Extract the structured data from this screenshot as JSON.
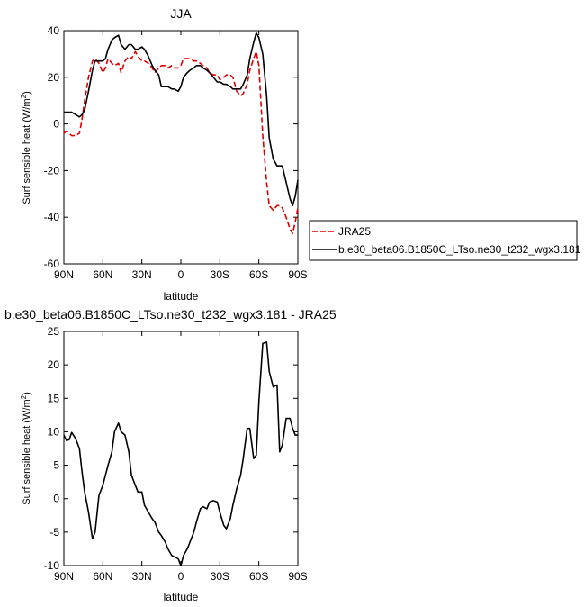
{
  "chart_data": [
    {
      "type": "line",
      "title": "JJA",
      "xlabel": "latitude",
      "ylabel": "Surf sensible heat (W/m",
      "ylabel_sup": "2",
      "ylabel_tail": ")",
      "xlim": [
        90,
        -90
      ],
      "ylim": [
        -60,
        40
      ],
      "xticks": [
        90,
        60,
        30,
        0,
        -30,
        -60,
        -90
      ],
      "xtick_labels": [
        "90N",
        "60N",
        "30N",
        "0",
        "30S",
        "60S",
        "90S"
      ],
      "yticks": [
        -60,
        -40,
        -20,
        0,
        20,
        40
      ],
      "ytick_labels": [
        "-60",
        "-40",
        "-20",
        "0",
        "20",
        "40"
      ],
      "legend_position": "right",
      "series": [
        {
          "name": "JRA25",
          "color": "#dd0000",
          "dash": true,
          "x": [
            90,
            88,
            86,
            84,
            81,
            78,
            76,
            74,
            71,
            68,
            66,
            63,
            60,
            58,
            56,
            53,
            51,
            48,
            46,
            43,
            40,
            38,
            35,
            33,
            30,
            28,
            25,
            22,
            20,
            17,
            15,
            12,
            10,
            7,
            5,
            2,
            0,
            -2,
            -5,
            -7,
            -10,
            -12,
            -15,
            -17,
            -20,
            -22,
            -25,
            -28,
            -30,
            -33,
            -35,
            -38,
            -40,
            -43,
            -46,
            -48,
            -51,
            -53,
            -56,
            -58,
            -60,
            -63,
            -66,
            -68,
            -71,
            -74,
            -76,
            -78,
            -81,
            -84,
            -86,
            -88,
            -90
          ],
          "y": [
            -4,
            -3,
            -4,
            -5,
            -5,
            -4,
            2,
            10,
            20,
            27,
            28,
            26,
            22,
            24,
            28,
            26,
            25,
            26,
            22,
            27,
            29,
            28,
            31,
            29,
            27,
            27,
            26,
            24,
            22,
            24,
            25,
            25,
            24,
            25,
            24,
            24,
            25,
            28,
            28,
            28,
            27,
            27,
            26,
            25,
            24,
            22,
            21,
            21,
            19,
            20,
            21,
            21,
            20,
            14,
            12,
            13,
            17,
            23,
            28,
            31,
            25,
            -5,
            -25,
            -35,
            -37,
            -35,
            -35,
            -36,
            -40,
            -45,
            -47,
            -42,
            -36
          ]
        },
        {
          "name": "b.e30_beta06.B1850C_LTso.ne30_t232_wgx3.181",
          "color": "#000000",
          "dash": false,
          "x": [
            90,
            88,
            86,
            84,
            81,
            78,
            76,
            74,
            71,
            68,
            66,
            63,
            60,
            58,
            56,
            53,
            51,
            48,
            46,
            43,
            40,
            38,
            35,
            33,
            30,
            28,
            25,
            22,
            20,
            17,
            15,
            12,
            10,
            7,
            5,
            2,
            0,
            -2,
            -5,
            -7,
            -10,
            -12,
            -15,
            -17,
            -20,
            -22,
            -25,
            -28,
            -30,
            -33,
            -35,
            -38,
            -40,
            -43,
            -46,
            -48,
            -51,
            -53,
            -56,
            -58,
            -60,
            -63,
            -66,
            -68,
            -71,
            -74,
            -76,
            -78,
            -81,
            -84,
            -86,
            -88,
            -90
          ],
          "y": [
            5,
            5,
            5,
            5,
            4,
            3,
            4,
            6,
            14,
            23,
            27,
            27,
            27,
            28,
            32,
            36,
            37,
            38,
            34,
            32,
            34,
            34,
            32,
            32,
            33,
            32,
            29,
            25,
            23,
            21,
            16,
            16,
            16,
            15,
            15,
            14,
            16,
            20,
            22,
            23,
            24,
            25,
            25,
            24,
            23,
            22,
            20,
            18,
            18,
            17,
            17,
            16,
            15,
            15,
            15,
            17,
            21,
            28,
            35,
            39,
            37,
            30,
            12,
            -6,
            -15,
            -18,
            -18,
            -18,
            -25,
            -32,
            -35,
            -31,
            -24
          ]
        }
      ]
    },
    {
      "type": "line",
      "title": "b.e30_beta06.B1850C_LTso.ne30_t232_wgx3.181 - JRA25",
      "xlabel": "latitude",
      "ylabel": "Surf sensible heat (W/m",
      "ylabel_sup": "2",
      "ylabel_tail": ")",
      "xlim": [
        90,
        -90
      ],
      "ylim": [
        -10,
        25
      ],
      "xticks": [
        90,
        60,
        30,
        0,
        -30,
        -60,
        -90
      ],
      "xtick_labels": [
        "90N",
        "60N",
        "30N",
        "0",
        "30S",
        "60S",
        "90S"
      ],
      "yticks": [
        -10,
        -5,
        0,
        5,
        10,
        15,
        20,
        25
      ],
      "ytick_labels": [
        "-10",
        "-5",
        "0",
        "5",
        "10",
        "15",
        "20",
        "25"
      ],
      "series": [
        {
          "color": "#000000",
          "dash": false,
          "x": [
            90,
            88,
            86,
            84,
            81,
            78,
            76,
            74,
            71,
            68,
            66,
            63,
            60,
            58,
            56,
            53,
            51,
            48,
            46,
            43,
            40,
            38,
            35,
            33,
            30,
            28,
            25,
            22,
            20,
            17,
            15,
            12,
            10,
            7,
            5,
            2,
            0,
            -2,
            -5,
            -7,
            -10,
            -12,
            -15,
            -17,
            -20,
            -22,
            -25,
            -28,
            -30,
            -33,
            -35,
            -38,
            -40,
            -43,
            -46,
            -48,
            -51,
            -53,
            -56,
            -58,
            -60,
            -63,
            -66,
            -68,
            -71,
            -74,
            -76,
            -78,
            -81,
            -84,
            -86,
            -88,
            -90
          ],
          "y": [
            9.5,
            8.7,
            8.8,
            9.9,
            9.0,
            7.5,
            4.0,
            1.0,
            -2.0,
            -6.0,
            -5.0,
            0.5,
            2.0,
            3.5,
            5.0,
            7.0,
            10.0,
            11.3,
            10.0,
            9.5,
            7.0,
            3.5,
            2.0,
            1.0,
            1.0,
            -1.0,
            -2.0,
            -3.0,
            -3.5,
            -5.0,
            -5.5,
            -6.5,
            -7.5,
            -8.5,
            -8.7,
            -9.0,
            -10.0,
            -8.5,
            -7.5,
            -6.5,
            -5.0,
            -3.5,
            -1.5,
            -1.2,
            -1.5,
            -0.5,
            -0.3,
            -0.5,
            -2.0,
            -4.0,
            -4.5,
            -3.0,
            -1.0,
            1.5,
            3.5,
            6.0,
            10.5,
            10.5,
            6.0,
            6.5,
            14.5,
            23.2,
            23.4,
            19.0,
            16.7,
            17.0,
            7.0,
            8.0,
            12.0,
            12.0,
            10.5,
            9.5,
            9.5
          ]
        }
      ]
    }
  ]
}
